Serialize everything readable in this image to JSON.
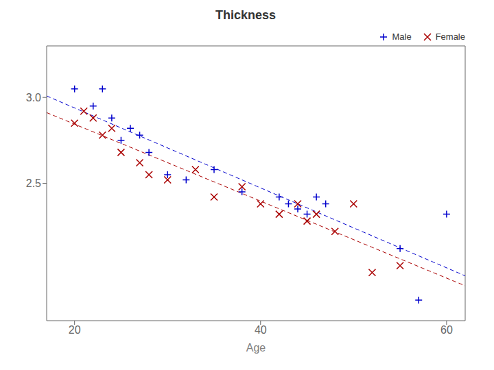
{
  "chart_data": {
    "type": "scatter",
    "title": "Thickness",
    "x_label": "Age",
    "xlim": [
      17,
      62
    ],
    "ylim": [
      1.7,
      3.3
    ],
    "xticks": [
      20,
      40,
      60
    ],
    "yticks": [
      2.5,
      {
        "value": 3,
        "label": "3.0"
      }
    ],
    "legend": "upper right",
    "series": [
      {
        "name": "Male",
        "color": "#0000cc",
        "marker": "plus",
        "x": [
          20,
          22,
          23,
          24,
          25,
          26,
          27,
          28,
          30,
          32,
          35,
          38,
          42,
          43,
          44,
          45,
          46,
          47,
          55,
          57,
          60
        ],
        "values": [
          3.05,
          2.95,
          3.05,
          2.88,
          2.75,
          2.82,
          2.78,
          2.68,
          2.55,
          2.52,
          2.58,
          2.45,
          2.42,
          2.38,
          2.35,
          2.32,
          2.42,
          2.38,
          2.12,
          1.82,
          2.32
        ]
      },
      {
        "name": "Female",
        "color": "#aa0000",
        "marker": "cross",
        "x": [
          20,
          21,
          22,
          23,
          24,
          25,
          27,
          28,
          30,
          33,
          35,
          38,
          40,
          42,
          44,
          45,
          46,
          48,
          50,
          52,
          55
        ],
        "values": [
          2.85,
          2.92,
          2.88,
          2.78,
          2.82,
          2.68,
          2.62,
          2.55,
          2.52,
          2.58,
          2.42,
          2.48,
          2.38,
          2.32,
          2.38,
          2.28,
          2.32,
          2.22,
          2.38,
          1.98,
          2.02
        ]
      },
      {
        "type": "line",
        "line_style": "dashed",
        "color": "#0000cc",
        "x": [
          17,
          62
        ],
        "values": [
          3.0086,
          1.9612
        ]
      },
      {
        "type": "line",
        "line_style": "dashed",
        "color": "#aa0000",
        "x": [
          17,
          62
        ],
        "values": [
          2.9116,
          1.9031
        ]
      }
    ]
  }
}
